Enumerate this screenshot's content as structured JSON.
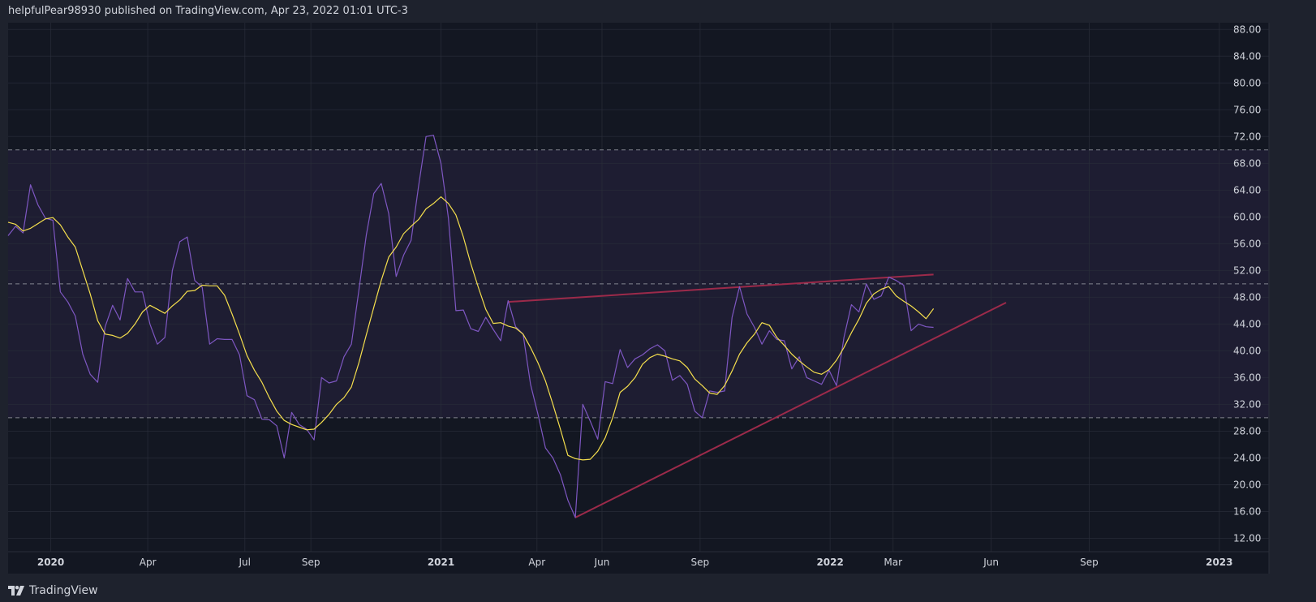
{
  "header": {
    "text": "helpfulPear98930 published on TradingView.com, Apr 23, 2022 01:01 UTC-3"
  },
  "footer": {
    "logo_text": "TradingView",
    "logo_icon": "tradingview-logo-icon"
  },
  "colors": {
    "background": "#131722",
    "outer": "#1e222d",
    "grid": "#2a2e39",
    "band": "#7e57c2",
    "rsi": "#7e57c2",
    "ma": "#f5df4d",
    "trendline": "#9c2a4a",
    "level": "#9598a1"
  },
  "chart_data": {
    "type": "line",
    "ylim": [
      10,
      89
    ],
    "y_ticks": [
      "88.00",
      "84.00",
      "80.00",
      "76.00",
      "72.00",
      "68.00",
      "64.00",
      "60.00",
      "56.00",
      "52.00",
      "48.00",
      "44.00",
      "40.00",
      "36.00",
      "32.00",
      "28.00",
      "24.00",
      "20.00",
      "16.00",
      "12.00"
    ],
    "x_ticks": [
      {
        "label": "2020",
        "date": "2020-01-01",
        "year": true
      },
      {
        "label": "Apr",
        "date": "2020-04-01",
        "year": false
      },
      {
        "label": "Jul",
        "date": "2020-07-01",
        "year": false
      },
      {
        "label": "Sep",
        "date": "2020-09-01",
        "year": false
      },
      {
        "label": "2021",
        "date": "2021-01-01",
        "year": true
      },
      {
        "label": "Apr",
        "date": "2021-04-01",
        "year": false
      },
      {
        "label": "Jun",
        "date": "2021-06-01",
        "year": false
      },
      {
        "label": "Sep",
        "date": "2021-09-01",
        "year": false
      },
      {
        "label": "2022",
        "date": "2022-01-01",
        "year": true
      },
      {
        "label": "Mar",
        "date": "2022-03-01",
        "year": false
      },
      {
        "label": "Jun",
        "date": "2022-06-01",
        "year": false
      },
      {
        "label": "Sep",
        "date": "2022-09-01",
        "year": false
      },
      {
        "label": "2023",
        "date": "2023-01-01",
        "year": true
      }
    ],
    "x_range": [
      "2019-11-22",
      "2023-01-08"
    ],
    "levels": [
      70,
      50,
      30
    ],
    "band": [
      30,
      70
    ],
    "series": [
      {
        "color": "#7e57c2",
        "points": [
          [
            "2019-11-22",
            57.2
          ],
          [
            "2019-11-29",
            58.6
          ],
          [
            "2019-12-06",
            57.6
          ],
          [
            "2019-12-13",
            64.8
          ],
          [
            "2019-12-20",
            61.8
          ],
          [
            "2019-12-27",
            59.8
          ],
          [
            "2020-01-03",
            59.5
          ],
          [
            "2020-01-10",
            48.8
          ],
          [
            "2020-01-17",
            47.3
          ],
          [
            "2020-01-24",
            45.2
          ],
          [
            "2020-01-31",
            39.5
          ],
          [
            "2020-02-07",
            36.5
          ],
          [
            "2020-02-14",
            35.3
          ],
          [
            "2020-02-21",
            43.6
          ],
          [
            "2020-02-28",
            46.8
          ],
          [
            "2020-03-06",
            44.6
          ],
          [
            "2020-03-13",
            50.8
          ],
          [
            "2020-03-20",
            48.8
          ],
          [
            "2020-03-27",
            48.8
          ],
          [
            "2020-04-03",
            44.0
          ],
          [
            "2020-04-10",
            41.0
          ],
          [
            "2020-04-17",
            42.0
          ],
          [
            "2020-04-24",
            52.0
          ],
          [
            "2020-05-01",
            56.3
          ],
          [
            "2020-05-08",
            57.0
          ],
          [
            "2020-05-15",
            50.5
          ],
          [
            "2020-05-22",
            49.5
          ],
          [
            "2020-05-29",
            41.0
          ],
          [
            "2020-06-05",
            41.8
          ],
          [
            "2020-06-12",
            41.7
          ],
          [
            "2020-06-19",
            41.7
          ],
          [
            "2020-06-26",
            39.4
          ],
          [
            "2020-07-03",
            33.3
          ],
          [
            "2020-07-10",
            32.7
          ],
          [
            "2020-07-17",
            29.8
          ],
          [
            "2020-07-24",
            29.7
          ],
          [
            "2020-07-31",
            28.8
          ],
          [
            "2020-08-07",
            24.0
          ],
          [
            "2020-08-14",
            30.8
          ],
          [
            "2020-08-21",
            29.0
          ],
          [
            "2020-08-28",
            28.3
          ],
          [
            "2020-09-04",
            26.7
          ],
          [
            "2020-09-11",
            36.0
          ],
          [
            "2020-09-18",
            35.2
          ],
          [
            "2020-09-25",
            35.5
          ],
          [
            "2020-10-02",
            39.1
          ],
          [
            "2020-10-09",
            41.0
          ],
          [
            "2020-10-16",
            49.0
          ],
          [
            "2020-10-23",
            57.3
          ],
          [
            "2020-10-30",
            63.5
          ],
          [
            "2020-11-06",
            65.0
          ],
          [
            "2020-11-13",
            60.5
          ],
          [
            "2020-11-20",
            51.1
          ],
          [
            "2020-11-27",
            54.3
          ],
          [
            "2020-12-04",
            56.5
          ],
          [
            "2020-12-11",
            64.6
          ],
          [
            "2020-12-18",
            72.0
          ],
          [
            "2020-12-25",
            72.2
          ],
          [
            "2021-01-01",
            68.0
          ],
          [
            "2021-01-08",
            59.8
          ],
          [
            "2021-01-15",
            46.0
          ],
          [
            "2021-01-22",
            46.1
          ],
          [
            "2021-01-29",
            43.3
          ],
          [
            "2021-02-05",
            42.9
          ],
          [
            "2021-02-12",
            45.0
          ],
          [
            "2021-02-19",
            43.2
          ],
          [
            "2021-02-26",
            41.5
          ],
          [
            "2021-03-05",
            47.5
          ],
          [
            "2021-03-12",
            43.6
          ],
          [
            "2021-03-19",
            42.5
          ],
          [
            "2021-03-26",
            35.0
          ],
          [
            "2021-04-02",
            30.5
          ],
          [
            "2021-04-09",
            25.5
          ],
          [
            "2021-04-16",
            24.0
          ],
          [
            "2021-04-23",
            21.5
          ],
          [
            "2021-04-30",
            17.7
          ],
          [
            "2021-05-07",
            15.1
          ],
          [
            "2021-05-14",
            32.0
          ],
          [
            "2021-05-21",
            29.5
          ],
          [
            "2021-05-28",
            26.8
          ],
          [
            "2021-06-04",
            35.4
          ],
          [
            "2021-06-11",
            35.1
          ],
          [
            "2021-06-18",
            40.2
          ],
          [
            "2021-06-25",
            37.5
          ],
          [
            "2021-07-02",
            38.8
          ],
          [
            "2021-07-09",
            39.4
          ],
          [
            "2021-07-16",
            40.3
          ],
          [
            "2021-07-23",
            40.9
          ],
          [
            "2021-07-30",
            40.0
          ],
          [
            "2021-08-06",
            35.6
          ],
          [
            "2021-08-13",
            36.3
          ],
          [
            "2021-08-20",
            35.0
          ],
          [
            "2021-08-27",
            31.0
          ],
          [
            "2021-09-03",
            30.0
          ],
          [
            "2021-09-10",
            34.0
          ],
          [
            "2021-09-17",
            33.8
          ],
          [
            "2021-09-24",
            34.0
          ],
          [
            "2021-10-01",
            45.0
          ],
          [
            "2021-10-08",
            49.6
          ],
          [
            "2021-10-15",
            45.5
          ],
          [
            "2021-10-22",
            43.5
          ],
          [
            "2021-10-29",
            41.0
          ],
          [
            "2021-11-05",
            43.0
          ],
          [
            "2021-11-12",
            41.7
          ],
          [
            "2021-11-19",
            41.5
          ],
          [
            "2021-11-26",
            37.3
          ],
          [
            "2021-12-03",
            39.1
          ],
          [
            "2021-12-10",
            36.0
          ],
          [
            "2021-12-17",
            35.5
          ],
          [
            "2021-12-24",
            35.0
          ],
          [
            "2021-12-31",
            37.1
          ],
          [
            "2022-01-07",
            34.8
          ],
          [
            "2022-01-14",
            42.0
          ],
          [
            "2022-01-21",
            46.9
          ],
          [
            "2022-01-28",
            45.8
          ],
          [
            "2022-02-04",
            50.0
          ],
          [
            "2022-02-11",
            47.7
          ],
          [
            "2022-02-18",
            48.2
          ],
          [
            "2022-02-25",
            51.0
          ],
          [
            "2022-03-04",
            50.5
          ],
          [
            "2022-03-11",
            49.8
          ],
          [
            "2022-03-18",
            43.0
          ],
          [
            "2022-03-25",
            44.0
          ],
          [
            "2022-04-01",
            43.6
          ],
          [
            "2022-04-08",
            43.5
          ]
        ]
      },
      {
        "color": "#f5df4d",
        "points": [
          [
            "2019-11-22",
            59.2
          ],
          [
            "2019-11-29",
            58.9
          ],
          [
            "2019-12-06",
            57.9
          ],
          [
            "2019-12-13",
            58.3
          ],
          [
            "2019-12-20",
            59.0
          ],
          [
            "2019-12-27",
            59.7
          ],
          [
            "2020-01-03",
            59.9
          ],
          [
            "2020-01-10",
            58.8
          ],
          [
            "2020-01-17",
            57.0
          ],
          [
            "2020-01-24",
            55.5
          ],
          [
            "2020-01-31",
            52.0
          ],
          [
            "2020-02-07",
            48.5
          ],
          [
            "2020-02-14",
            44.5
          ],
          [
            "2020-02-21",
            42.5
          ],
          [
            "2020-02-28",
            42.3
          ],
          [
            "2020-03-06",
            41.9
          ],
          [
            "2020-03-13",
            42.6
          ],
          [
            "2020-03-20",
            44.0
          ],
          [
            "2020-03-27",
            45.8
          ],
          [
            "2020-04-03",
            46.8
          ],
          [
            "2020-04-10",
            46.2
          ],
          [
            "2020-04-17",
            45.6
          ],
          [
            "2020-04-24",
            46.7
          ],
          [
            "2020-05-01",
            47.6
          ],
          [
            "2020-05-08",
            48.9
          ],
          [
            "2020-05-15",
            49.0
          ],
          [
            "2020-05-22",
            49.8
          ],
          [
            "2020-05-29",
            49.7
          ],
          [
            "2020-06-05",
            49.7
          ],
          [
            "2020-06-12",
            48.3
          ],
          [
            "2020-06-19",
            45.5
          ],
          [
            "2020-06-26",
            42.5
          ],
          [
            "2020-07-03",
            39.3
          ],
          [
            "2020-07-10",
            37.1
          ],
          [
            "2020-07-17",
            35.3
          ],
          [
            "2020-07-24",
            33.0
          ],
          [
            "2020-07-31",
            31.0
          ],
          [
            "2020-08-07",
            29.6
          ],
          [
            "2020-08-14",
            29.0
          ],
          [
            "2020-08-21",
            28.6
          ],
          [
            "2020-08-28",
            28.2
          ],
          [
            "2020-09-04",
            28.3
          ],
          [
            "2020-09-11",
            29.3
          ],
          [
            "2020-09-18",
            30.5
          ],
          [
            "2020-09-25",
            32.0
          ],
          [
            "2020-10-02",
            33.0
          ],
          [
            "2020-10-09",
            34.6
          ],
          [
            "2020-10-16",
            38.2
          ],
          [
            "2020-10-23",
            42.4
          ],
          [
            "2020-10-30",
            46.5
          ],
          [
            "2020-11-06",
            50.5
          ],
          [
            "2020-11-13",
            54.0
          ],
          [
            "2020-11-20",
            55.5
          ],
          [
            "2020-11-27",
            57.5
          ],
          [
            "2020-12-04",
            58.6
          ],
          [
            "2020-12-11",
            59.6
          ],
          [
            "2020-12-18",
            61.2
          ],
          [
            "2020-12-25",
            62.0
          ],
          [
            "2021-01-01",
            63.0
          ],
          [
            "2021-01-08",
            62.0
          ],
          [
            "2021-01-15",
            60.3
          ],
          [
            "2021-01-22",
            57.0
          ],
          [
            "2021-01-29",
            53.0
          ],
          [
            "2021-02-05",
            49.5
          ],
          [
            "2021-02-12",
            46.2
          ],
          [
            "2021-02-19",
            44.1
          ],
          [
            "2021-02-26",
            44.2
          ],
          [
            "2021-03-05",
            43.7
          ],
          [
            "2021-03-12",
            43.4
          ],
          [
            "2021-03-19",
            42.5
          ],
          [
            "2021-03-26",
            40.5
          ],
          [
            "2021-04-02",
            38.2
          ],
          [
            "2021-04-09",
            35.5
          ],
          [
            "2021-04-16",
            32.0
          ],
          [
            "2021-04-23",
            28.3
          ],
          [
            "2021-04-30",
            24.4
          ],
          [
            "2021-05-07",
            23.9
          ],
          [
            "2021-05-14",
            23.7
          ],
          [
            "2021-05-21",
            23.8
          ],
          [
            "2021-05-28",
            25.0
          ],
          [
            "2021-06-04",
            27.0
          ],
          [
            "2021-06-11",
            30.0
          ],
          [
            "2021-06-18",
            33.8
          ],
          [
            "2021-06-25",
            34.7
          ],
          [
            "2021-07-02",
            36.0
          ],
          [
            "2021-07-09",
            38.0
          ],
          [
            "2021-07-16",
            39.0
          ],
          [
            "2021-07-23",
            39.5
          ],
          [
            "2021-07-30",
            39.2
          ],
          [
            "2021-08-06",
            38.8
          ],
          [
            "2021-08-13",
            38.5
          ],
          [
            "2021-08-20",
            37.5
          ],
          [
            "2021-08-27",
            35.8
          ],
          [
            "2021-09-03",
            34.8
          ],
          [
            "2021-09-10",
            33.7
          ],
          [
            "2021-09-17",
            33.5
          ],
          [
            "2021-09-24",
            34.8
          ],
          [
            "2021-10-01",
            37.0
          ],
          [
            "2021-10-08",
            39.5
          ],
          [
            "2021-10-15",
            41.2
          ],
          [
            "2021-10-22",
            42.5
          ],
          [
            "2021-10-29",
            44.2
          ],
          [
            "2021-11-05",
            43.8
          ],
          [
            "2021-11-12",
            42.0
          ],
          [
            "2021-11-19",
            40.8
          ],
          [
            "2021-11-26",
            39.5
          ],
          [
            "2021-12-03",
            38.5
          ],
          [
            "2021-12-10",
            37.6
          ],
          [
            "2021-12-17",
            36.8
          ],
          [
            "2021-12-24",
            36.5
          ],
          [
            "2021-12-31",
            37.2
          ],
          [
            "2022-01-07",
            38.6
          ],
          [
            "2022-01-14",
            40.5
          ],
          [
            "2022-01-21",
            42.7
          ],
          [
            "2022-01-28",
            44.7
          ],
          [
            "2022-02-04",
            47.1
          ],
          [
            "2022-02-11",
            48.5
          ],
          [
            "2022-02-18",
            49.2
          ],
          [
            "2022-02-25",
            49.6
          ],
          [
            "2022-03-04",
            48.2
          ],
          [
            "2022-03-11",
            47.4
          ],
          [
            "2022-03-18",
            46.7
          ],
          [
            "2022-03-25",
            45.8
          ],
          [
            "2022-04-01",
            44.8
          ],
          [
            "2022-04-08",
            46.3
          ]
        ]
      }
    ],
    "trendlines": [
      {
        "from": [
          "2021-03-05",
          47.3
        ],
        "to": [
          "2022-04-08",
          51.4
        ]
      },
      {
        "from": [
          "2021-05-07",
          15.1
        ],
        "to": [
          "2022-06-15",
          47.2
        ]
      }
    ]
  }
}
